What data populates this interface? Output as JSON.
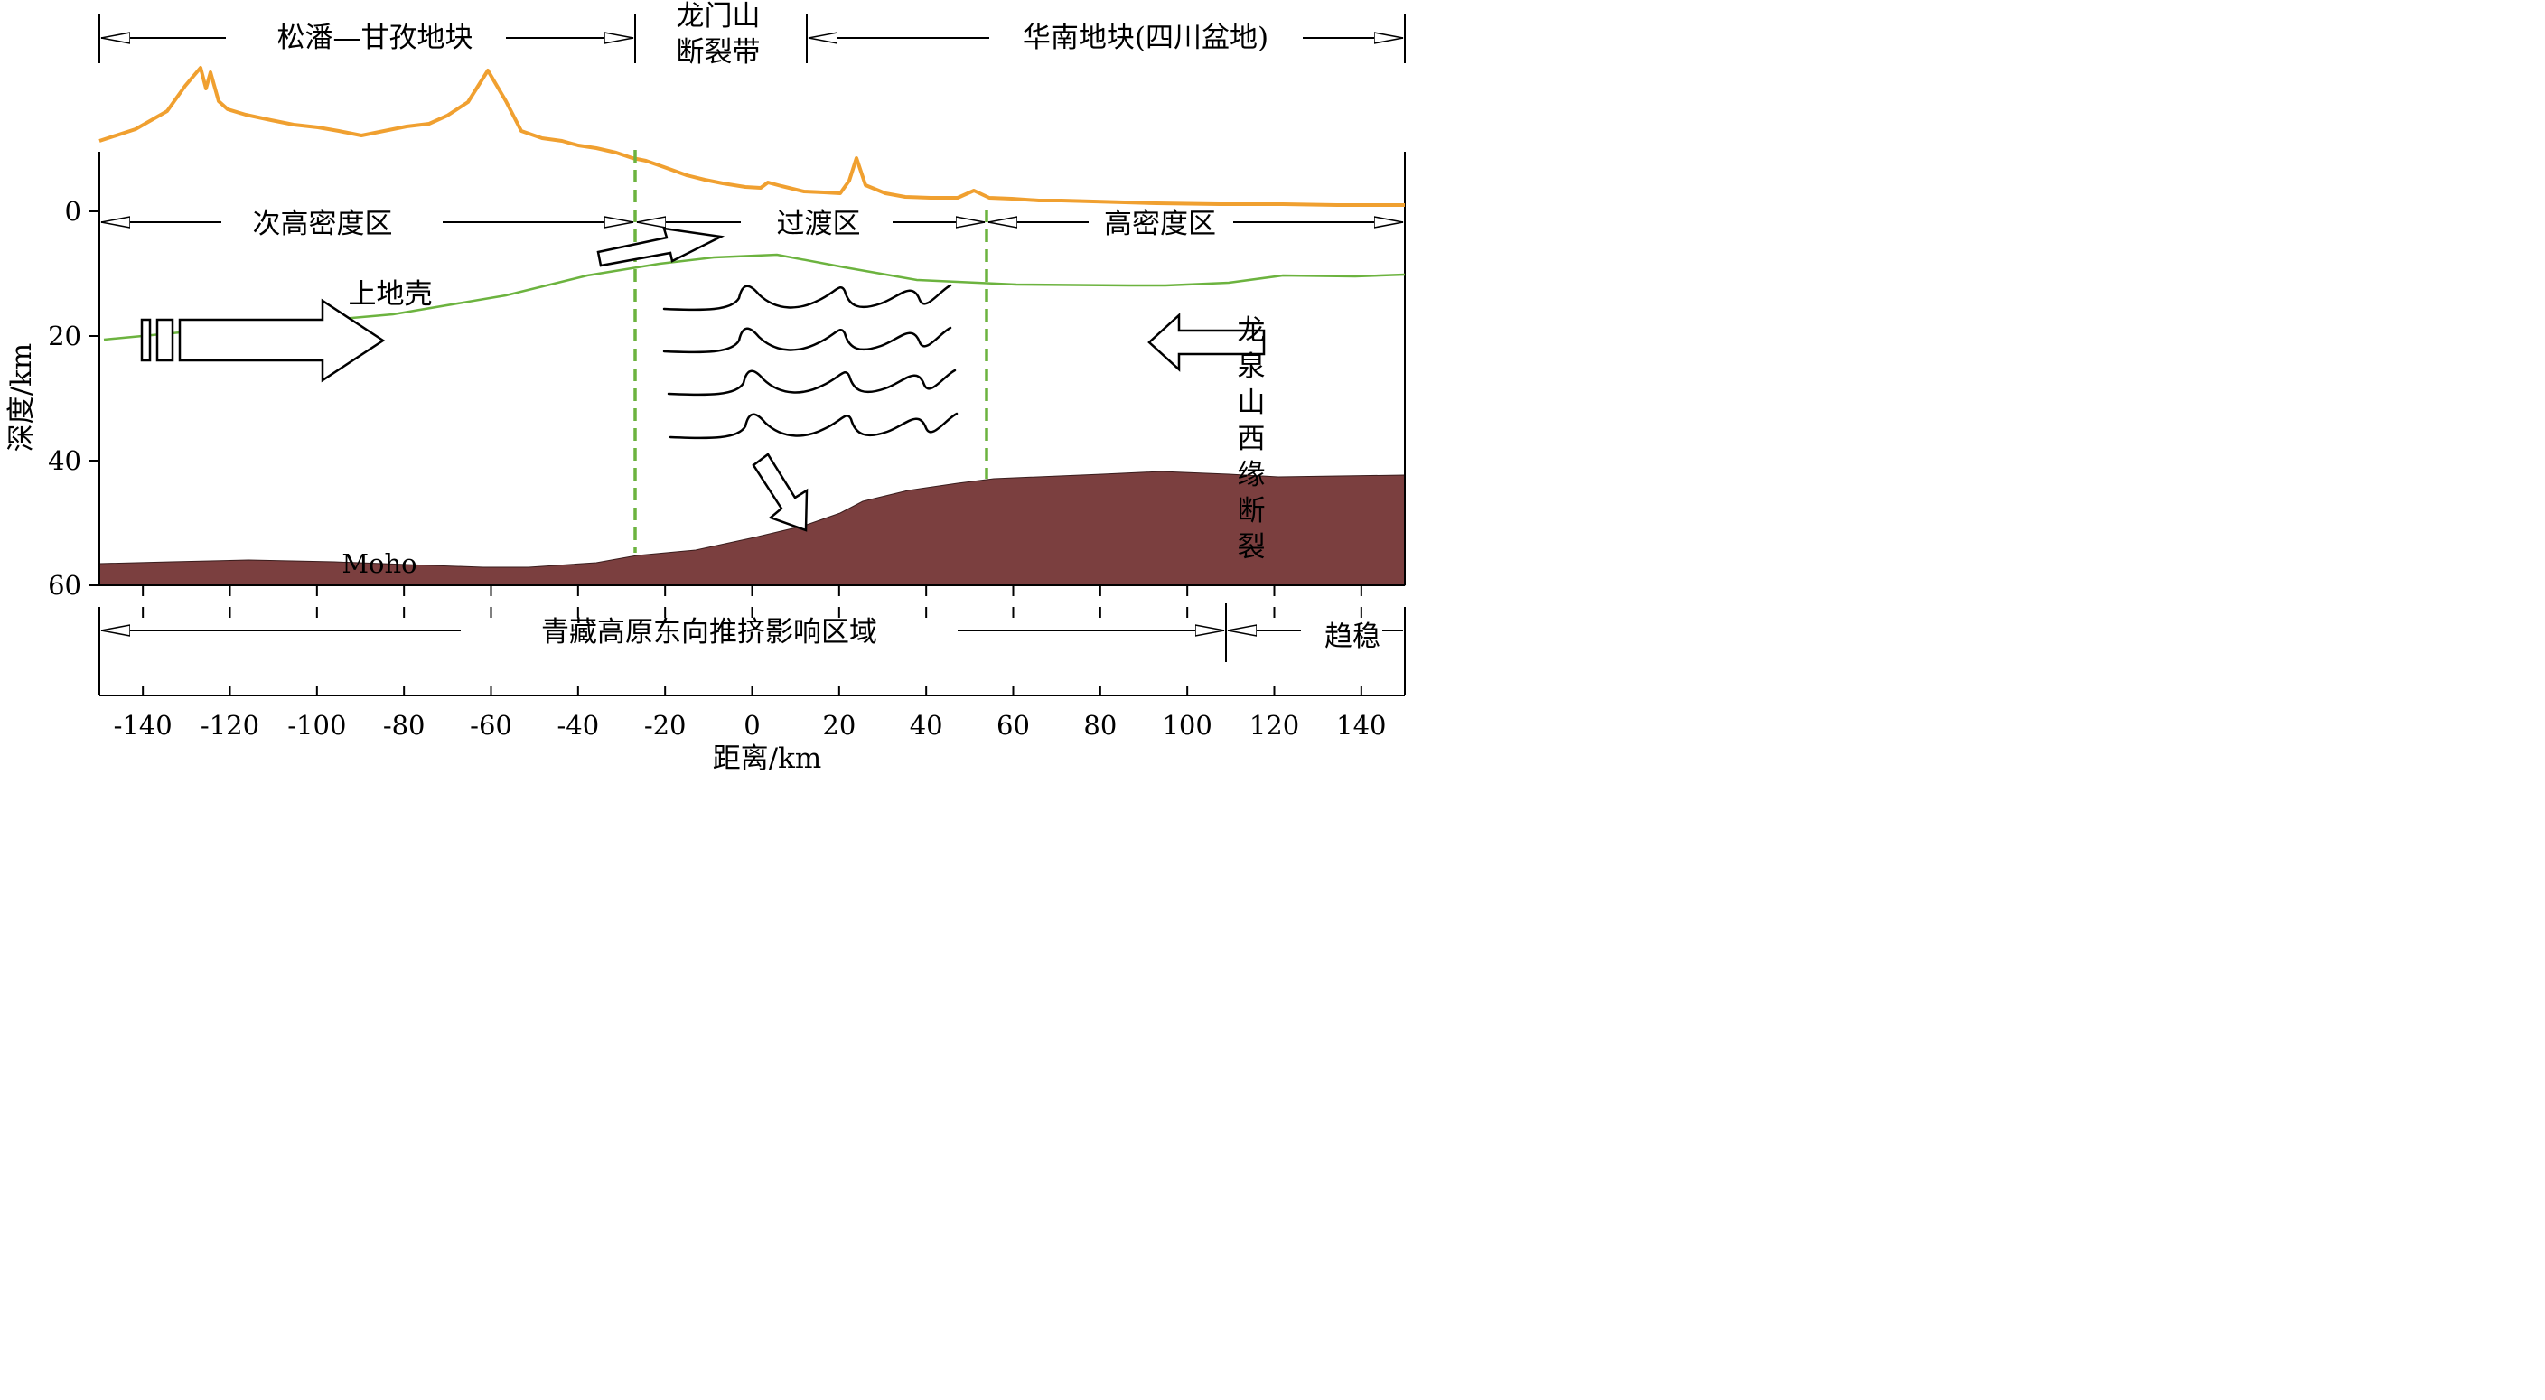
{
  "header": {
    "songpan_block": "松潘—甘孜地块",
    "longmenshan_line1": "龙门山",
    "longmenshan_line2": "断裂带",
    "south_china_block": "华南地块(四川盆地)"
  },
  "zones": {
    "sub_high_density": "次高密度区",
    "transition": "过渡区",
    "high_density": "高密度区"
  },
  "labels": {
    "upper_crust": "上地壳",
    "moho": "Moho",
    "longquan_fault": [
      "龙",
      "泉",
      "山",
      "西",
      "缘",
      "断",
      "裂"
    ]
  },
  "bottom_zones": {
    "influence": "青藏高原东向推挤影响区域",
    "stable": "趋稳"
  },
  "axes": {
    "xlabel": "距离/km",
    "ylabel": "深度/km",
    "x_ticks": [
      "-140",
      "-120",
      "-100",
      "-80",
      "-60",
      "-40",
      "-20",
      "0",
      "20",
      "40",
      "60",
      "80",
      "100",
      "120",
      "140"
    ],
    "y_ticks": [
      "0",
      "20",
      "40",
      "60"
    ]
  },
  "colors": {
    "topography": "#F0A030",
    "upper_crust_line": "#6CB33F",
    "boundary_dash": "#6CB33F",
    "moho_fill": "#7B3F3F"
  }
}
